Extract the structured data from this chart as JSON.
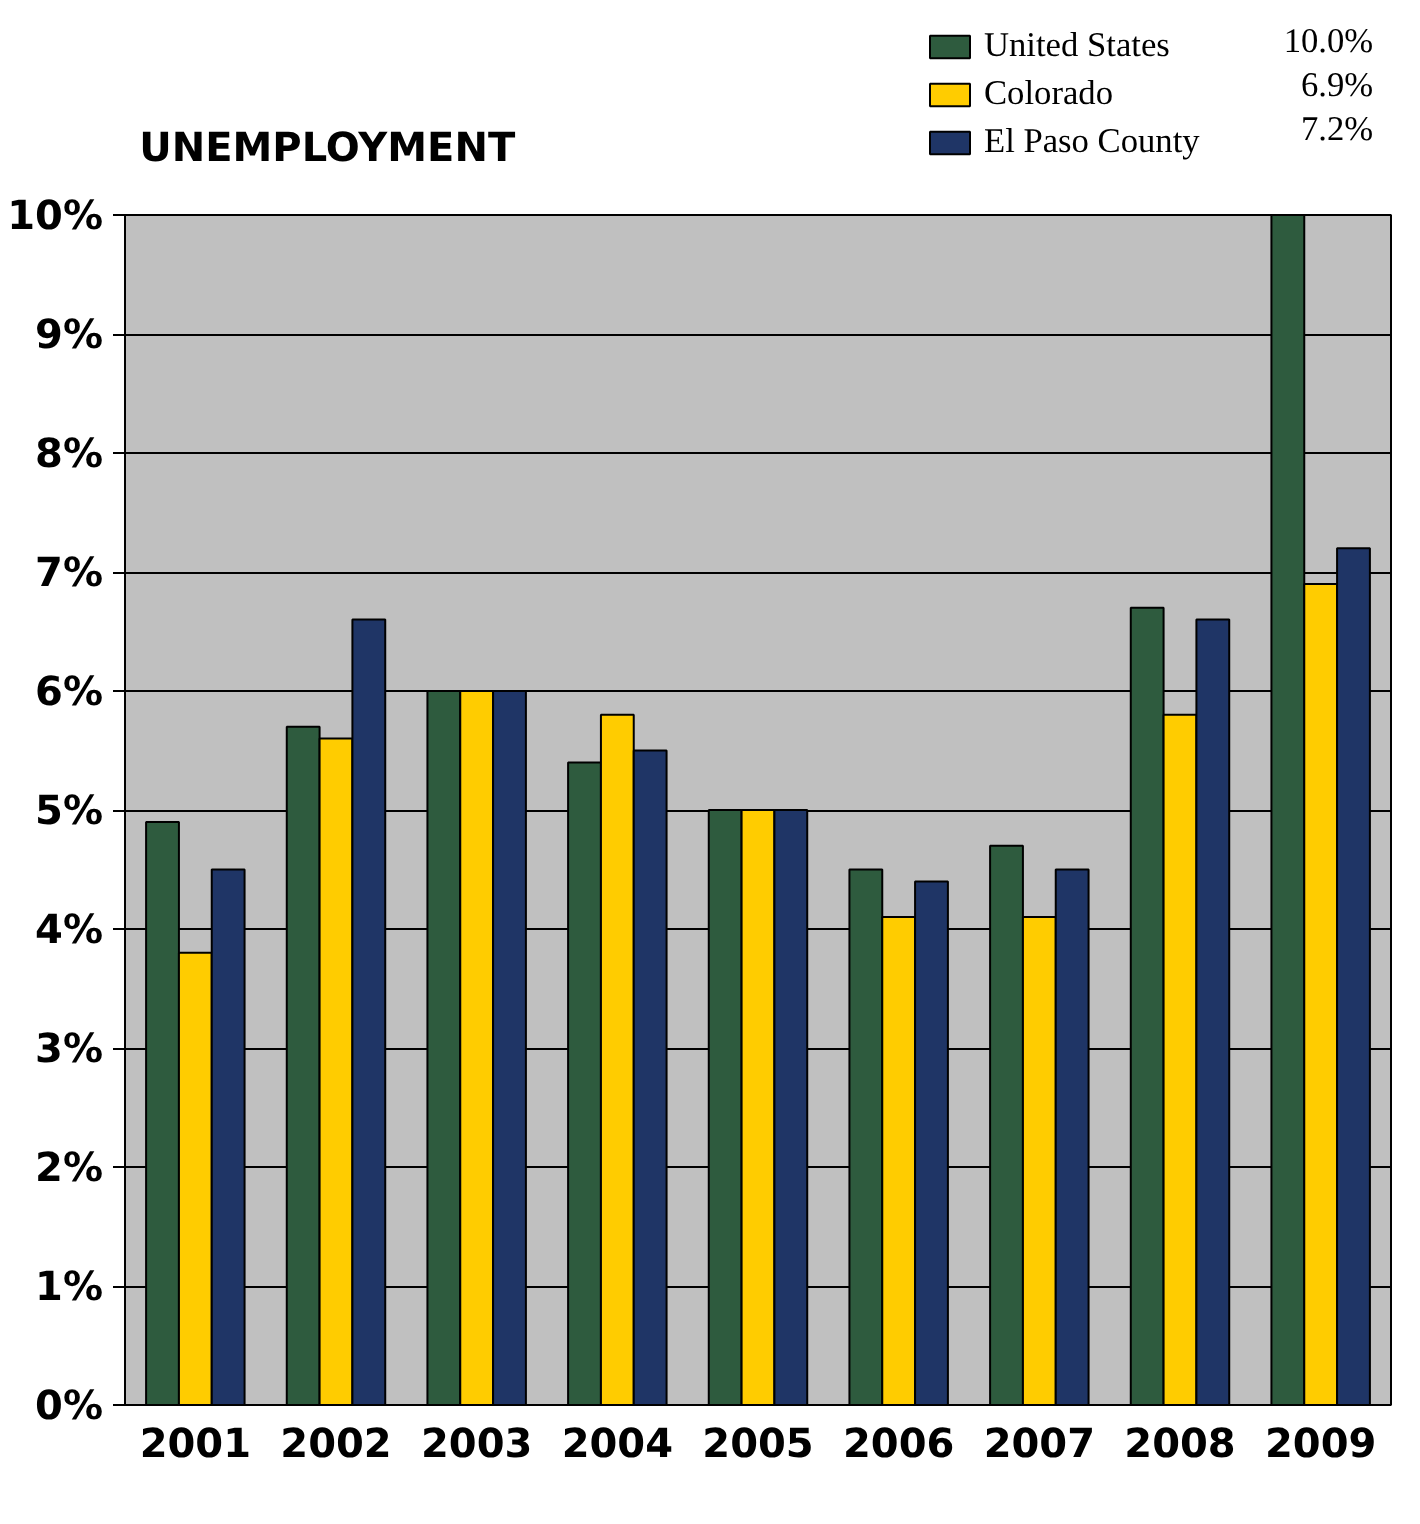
{
  "chart_data": {
    "type": "bar",
    "title": "UNEMPLOYMENT",
    "categories": [
      "2001",
      "2002",
      "2003",
      "2004",
      "2005",
      "2006",
      "2007",
      "2008",
      "2009"
    ],
    "series": [
      {
        "name": "United States",
        "color": "#2e5b3e",
        "values": [
          4.9,
          5.7,
          6.0,
          5.4,
          5.0,
          4.5,
          4.7,
          6.7,
          10.0
        ]
      },
      {
        "name": "Colorado",
        "color": "#ffcc00",
        "values": [
          3.8,
          5.6,
          6.0,
          5.8,
          5.0,
          4.1,
          4.1,
          5.8,
          6.9
        ]
      },
      {
        "name": "El Paso County",
        "color": "#1f3566",
        "values": [
          4.5,
          6.6,
          6.0,
          5.5,
          5.0,
          4.4,
          4.5,
          6.6,
          7.2
        ]
      }
    ],
    "annotations": [
      "10.0%",
      "6.9%",
      "7.2%"
    ],
    "ylim": [
      0,
      10
    ],
    "yticks": [
      {
        "value": 0,
        "label": "0%"
      },
      {
        "value": 1,
        "label": "1%"
      },
      {
        "value": 2,
        "label": "2%"
      },
      {
        "value": 3,
        "label": "3%"
      },
      {
        "value": 4,
        "label": "4%"
      },
      {
        "value": 5,
        "label": "5%"
      },
      {
        "value": 6,
        "label": "6%"
      },
      {
        "value": 7,
        "label": "7%"
      },
      {
        "value": 8,
        "label": "8%"
      },
      {
        "value": 9,
        "label": "9%"
      },
      {
        "value": 10,
        "label": "10%"
      }
    ],
    "grid": "y",
    "legend": "top right"
  }
}
